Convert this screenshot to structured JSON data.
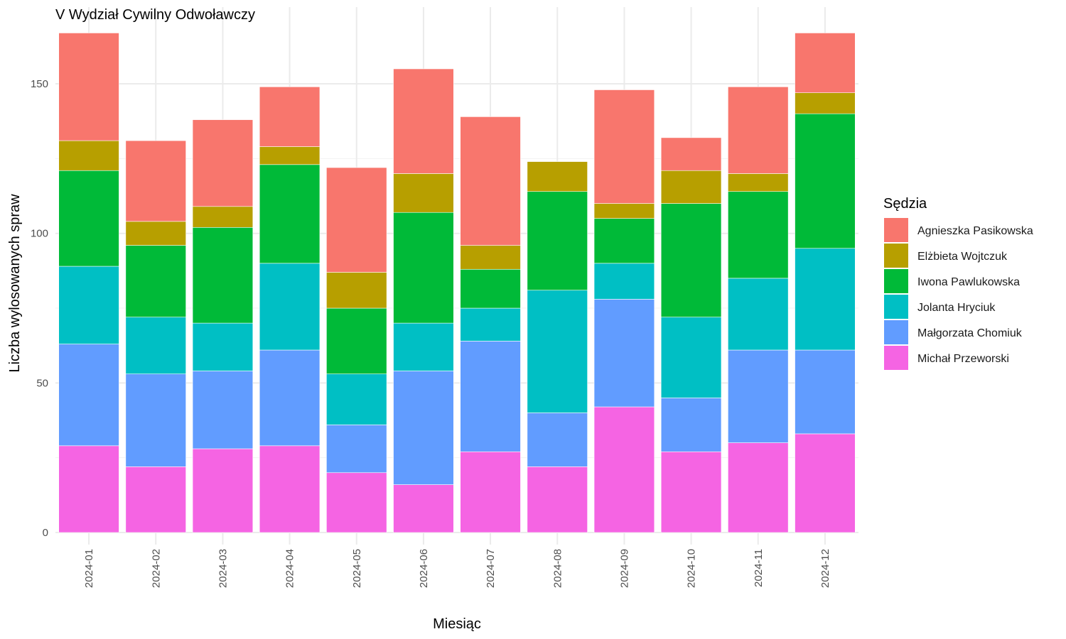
{
  "chart_data": {
    "type": "bar",
    "stacked": true,
    "title": "V Wydział Cywilny Odwoławczy",
    "xlabel": "Miesiąc",
    "ylabel": "Liczba wylosowanych spraw",
    "ylim": [
      0,
      167
    ],
    "yticks": [
      0,
      50,
      100,
      150
    ],
    "grid": true,
    "legend_position": "right",
    "legend_title": "Sędzia",
    "categories": [
      "2024-01",
      "2024-02",
      "2024-03",
      "2024-04",
      "2024-05",
      "2024-06",
      "2024-07",
      "2024-08",
      "2024-09",
      "2024-10",
      "2024-11",
      "2024-12"
    ],
    "series": [
      {
        "name": "Agnieszka Pasikowska",
        "color": "#F8766D",
        "values": [
          36,
          27,
          29,
          20,
          35,
          35,
          43,
          0,
          38,
          11,
          29,
          20
        ]
      },
      {
        "name": "Elżbieta Wojtczuk",
        "color": "#B79F00",
        "values": [
          10,
          8,
          7,
          6,
          12,
          13,
          8,
          10,
          5,
          11,
          6,
          7
        ]
      },
      {
        "name": "Iwona Pawlukowska",
        "color": "#00BA38",
        "values": [
          32,
          24,
          32,
          33,
          22,
          37,
          13,
          33,
          15,
          38,
          29,
          45
        ]
      },
      {
        "name": "Jolanta Hryciuk",
        "color": "#00BFC4",
        "values": [
          26,
          19,
          16,
          29,
          17,
          16,
          11,
          41,
          12,
          27,
          24,
          34
        ]
      },
      {
        "name": "Małgorzata Chomiuk",
        "color": "#619CFF",
        "values": [
          34,
          31,
          26,
          32,
          16,
          38,
          37,
          18,
          36,
          18,
          31,
          28
        ]
      },
      {
        "name": "Michał Przeworski",
        "color": "#F564E3",
        "values": [
          29,
          22,
          28,
          29,
          20,
          16,
          27,
          22,
          42,
          27,
          30,
          33
        ]
      }
    ]
  }
}
